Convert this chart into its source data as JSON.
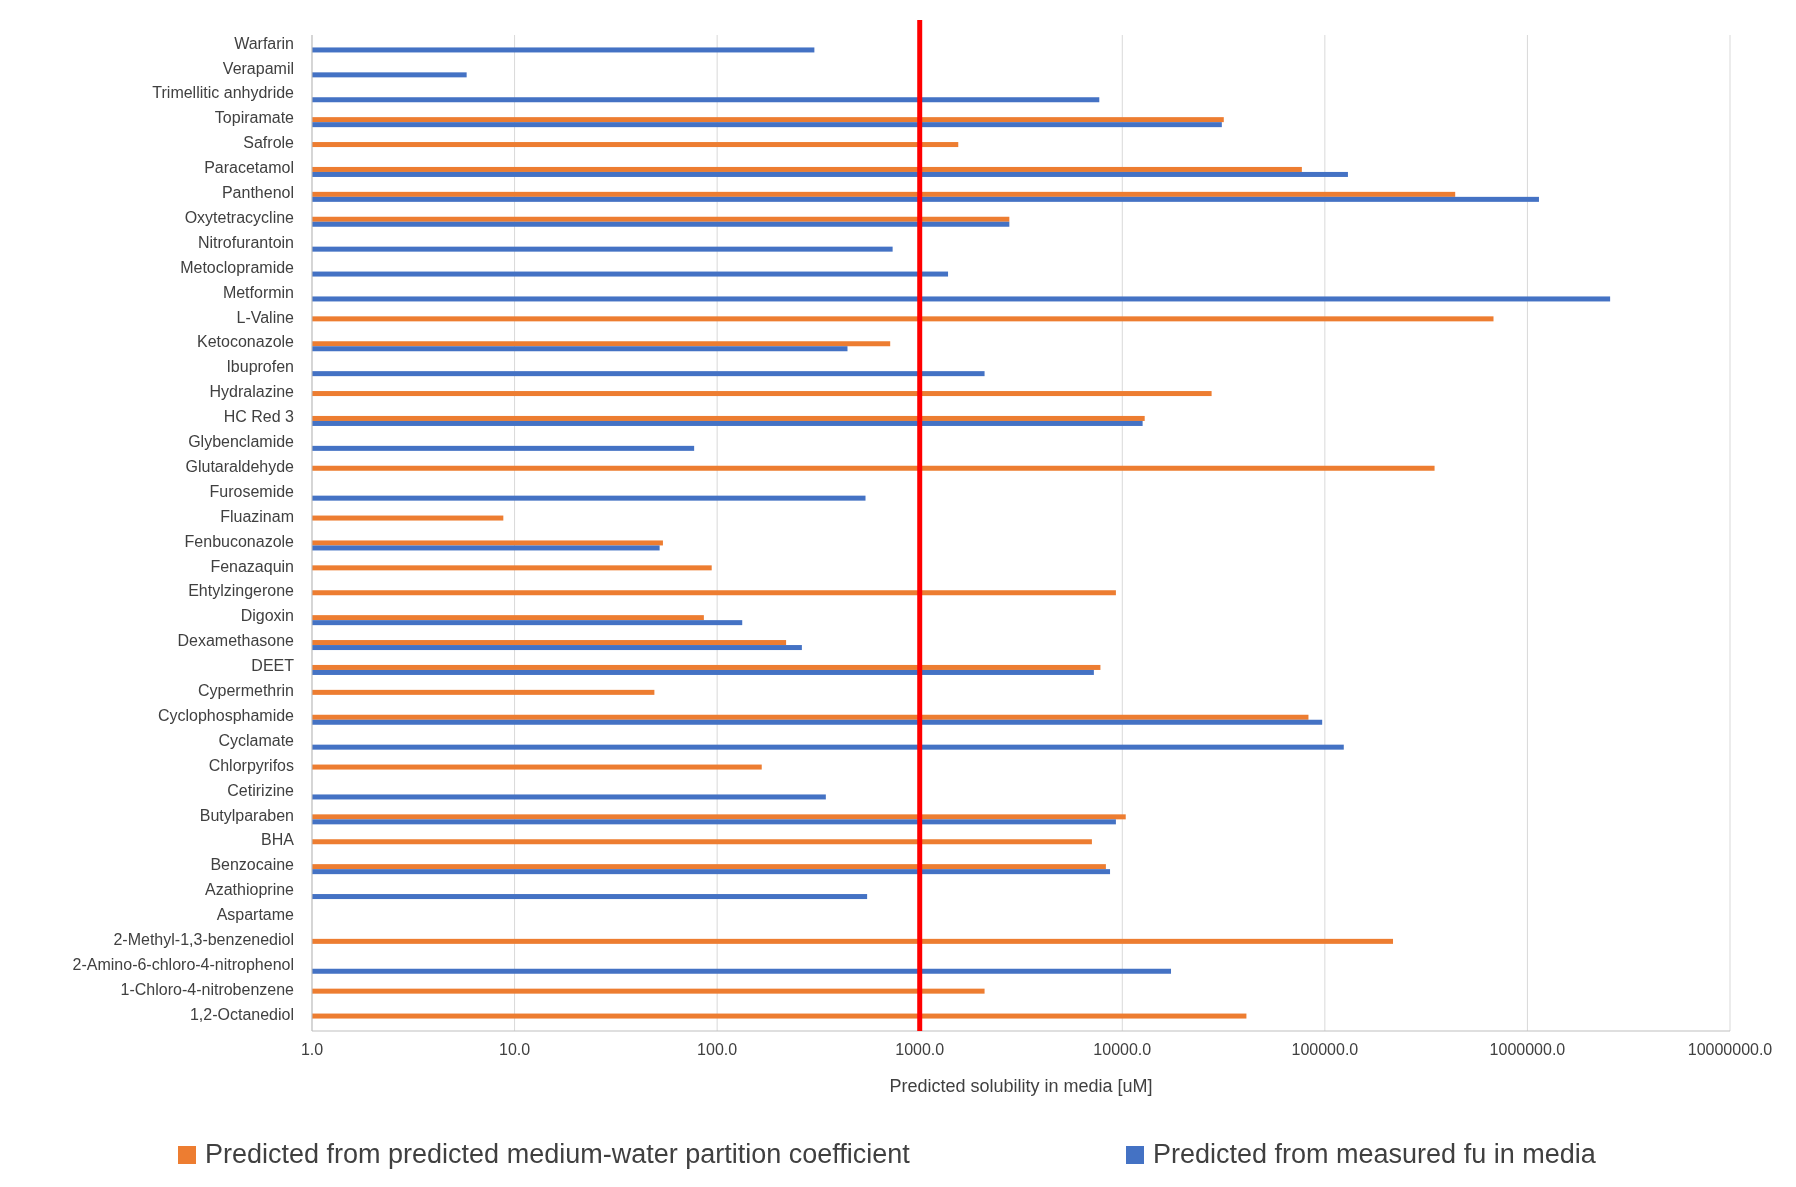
{
  "chart_data": {
    "type": "bar",
    "orientation": "horizontal",
    "log": "x",
    "grid": "x",
    "legend": "bottom",
    "xlabel": "Predicted solubility in media [uM]",
    "categories": [
      "Warfarin",
      "Verapamil",
      "Trimellitic anhydride",
      "Topiramate",
      "Safrole",
      "Paracetamol",
      "Panthenol",
      "Oxytetracycline",
      "Nitrofurantoin",
      "Metoclopramide",
      "Metformin",
      "L-Valine",
      "Ketoconazole",
      "Ibuprofen",
      "Hydralazine",
      "HC Red 3",
      "Glybenclamide",
      "Glutaraldehyde",
      "Furosemide",
      "Fluazinam",
      "Fenbuconazole",
      "Fenazaquin",
      "Ehtylzingerone",
      "Digoxin",
      "Dexamethasone",
      "DEET",
      "Cypermethrin",
      "Cyclophosphamide",
      "Cyclamate",
      "Chlorpyrifos",
      "Cetirizine",
      "Butylparaben",
      "BHA",
      "Benzocaine",
      "Azathioprine",
      "Aspartame",
      "2-Methyl-1,3-benzenediol",
      "2-Amino-6-chloro-4-nitrophenol",
      "1-Chloro-4-nitrobenzene",
      "1,2-Octanediol"
    ],
    "series": [
      {
        "name": "Predicted from predicted medium-water partition coefficient",
        "color": "#ed7d31",
        "values": [
          null,
          null,
          null,
          31700,
          1550,
          77000,
          440000,
          2770,
          null,
          null,
          null,
          680000,
          715,
          null,
          27600,
          12900,
          null,
          348000,
          null,
          8.8,
          54,
          94,
          9300,
          86,
          219,
          7800,
          49,
          83000,
          null,
          166,
          null,
          10400,
          7080,
          8300,
          null,
          null,
          217000,
          null,
          2090,
          41000
        ]
      },
      {
        "name": "Predicted from measured fu in media",
        "color": "#4472c4",
        "values": [
          302,
          5.8,
          7700,
          31000,
          null,
          130000,
          1140000,
          2770,
          735,
          1380,
          2560000,
          null,
          440,
          2090,
          null,
          12600,
          77,
          null,
          540,
          null,
          52,
          null,
          null,
          133,
          262,
          7240,
          null,
          97000,
          124000,
          null,
          344,
          9300,
          null,
          8700,
          550,
          null,
          null,
          17400,
          null,
          null
        ]
      }
    ],
    "xlim": [
      1,
      10000000
    ],
    "xticks": [
      {
        "value": 1,
        "label": "1.0"
      },
      {
        "value": 10,
        "label": "10.0"
      },
      {
        "value": 100,
        "label": "100.0"
      },
      {
        "value": 1000,
        "label": "1000.0"
      },
      {
        "value": 10000,
        "label": "10000.0"
      },
      {
        "value": 100000,
        "label": "100000.0"
      },
      {
        "value": 1000000,
        "label": "1000000.0"
      },
      {
        "value": 10000000,
        "label": "10000000.0"
      }
    ],
    "ref_lines": [
      {
        "axis": "x",
        "value": 1000,
        "color": "#ff0000"
      }
    ]
  }
}
